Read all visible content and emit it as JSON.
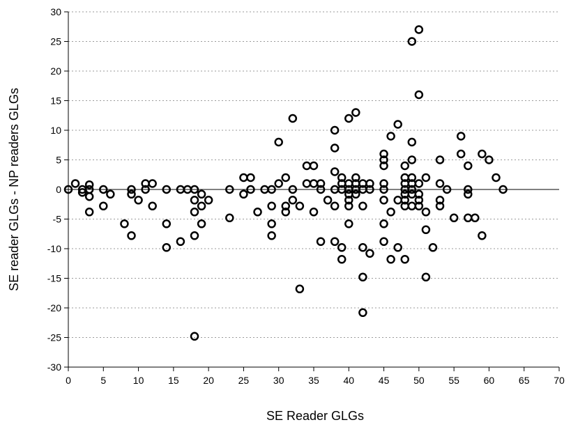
{
  "chart_data": {
    "type": "scatter",
    "title": "",
    "xlabel": "SE Reader GLGs",
    "ylabel": "SE reader GLGs - NP readers GLGs",
    "xlim": [
      0,
      70
    ],
    "ylim": [
      -30,
      30
    ],
    "xticks": [
      "0",
      "5",
      "10",
      "15",
      "20",
      "25",
      "30",
      "35",
      "40",
      "45",
      "50",
      "55",
      "60",
      "65",
      "70"
    ],
    "yticks": [
      "30",
      "25",
      "20",
      "15",
      "10",
      "5",
      "0",
      "-5",
      "-10",
      "-15",
      "-20",
      "-25",
      "-30"
    ],
    "grid": "horizontal dotted",
    "reference_line": 0,
    "marker": "open circle",
    "series": [
      {
        "points": [
          [
            0,
            0
          ],
          [
            1,
            1
          ],
          [
            2,
            0
          ],
          [
            2,
            -0.5
          ],
          [
            3,
            0.8
          ],
          [
            3,
            0
          ],
          [
            3,
            -1.2
          ],
          [
            3,
            -3.8
          ],
          [
            5,
            0
          ],
          [
            5,
            -2.8
          ],
          [
            6,
            -0.8
          ],
          [
            8,
            -5.8
          ],
          [
            9,
            0
          ],
          [
            9,
            -0.8
          ],
          [
            9,
            -7.8
          ],
          [
            10,
            -1.8
          ],
          [
            11,
            1
          ],
          [
            11,
            0
          ],
          [
            12,
            1
          ],
          [
            12,
            -2.8
          ],
          [
            14,
            0
          ],
          [
            14,
            -5.8
          ],
          [
            14,
            -9.8
          ],
          [
            16,
            0
          ],
          [
            16,
            -8.8
          ],
          [
            17,
            0
          ],
          [
            18,
            0
          ],
          [
            18,
            -1.8
          ],
          [
            18,
            -3.8
          ],
          [
            18,
            -7.8
          ],
          [
            18,
            -24.8
          ],
          [
            19,
            -0.8
          ],
          [
            19,
            -2.8
          ],
          [
            19,
            -5.8
          ],
          [
            20,
            -1.8
          ],
          [
            23,
            0
          ],
          [
            23,
            -4.8
          ],
          [
            25,
            2
          ],
          [
            25,
            -0.8
          ],
          [
            26,
            2
          ],
          [
            26,
            0
          ],
          [
            27,
            -3.8
          ],
          [
            28,
            0
          ],
          [
            29,
            0
          ],
          [
            29,
            -2.8
          ],
          [
            29,
            -5.8
          ],
          [
            29,
            -7.8
          ],
          [
            30,
            8
          ],
          [
            30,
            1
          ],
          [
            31,
            2
          ],
          [
            31,
            -2.8
          ],
          [
            31,
            -3.8
          ],
          [
            32,
            12
          ],
          [
            32,
            0
          ],
          [
            32,
            -1.8
          ],
          [
            33,
            -2.8
          ],
          [
            33,
            -16.8
          ],
          [
            34,
            4
          ],
          [
            34,
            1
          ],
          [
            35,
            4
          ],
          [
            35,
            1
          ],
          [
            35,
            -3.8
          ],
          [
            36,
            1
          ],
          [
            36,
            0
          ],
          [
            36,
            -8.8
          ],
          [
            37,
            -1.8
          ],
          [
            38,
            10
          ],
          [
            38,
            7
          ],
          [
            38,
            3
          ],
          [
            38,
            0
          ],
          [
            38,
            -2.8
          ],
          [
            38,
            -8.8
          ],
          [
            39,
            2
          ],
          [
            39,
            1
          ],
          [
            39,
            0
          ],
          [
            39,
            -9.8
          ],
          [
            39,
            -11.8
          ],
          [
            40,
            12
          ],
          [
            40,
            1
          ],
          [
            40,
            0
          ],
          [
            40,
            -0.8
          ],
          [
            40,
            -1.8
          ],
          [
            40,
            -2.8
          ],
          [
            40,
            -5.8
          ],
          [
            41,
            13
          ],
          [
            41,
            2
          ],
          [
            41,
            1
          ],
          [
            41,
            0
          ],
          [
            41,
            -0.8
          ],
          [
            42,
            1
          ],
          [
            42,
            0
          ],
          [
            42,
            -2.8
          ],
          [
            42,
            -9.8
          ],
          [
            42,
            -14.8
          ],
          [
            42,
            -20.8
          ],
          [
            43,
            1
          ],
          [
            43,
            0
          ],
          [
            43,
            -10.8
          ],
          [
            45,
            6
          ],
          [
            45,
            5
          ],
          [
            45,
            4
          ],
          [
            45,
            1
          ],
          [
            45,
            0
          ],
          [
            45,
            -1.8
          ],
          [
            45,
            -5.8
          ],
          [
            45,
            -8.8
          ],
          [
            46,
            9
          ],
          [
            46,
            -3.8
          ],
          [
            46,
            -11.8
          ],
          [
            47,
            11
          ],
          [
            47,
            -1.8
          ],
          [
            47,
            -9.8
          ],
          [
            48,
            4
          ],
          [
            48,
            2
          ],
          [
            48,
            1
          ],
          [
            48,
            0
          ],
          [
            48,
            -0.8
          ],
          [
            48,
            -1.8
          ],
          [
            48,
            -2.8
          ],
          [
            48,
            -11.8
          ],
          [
            49,
            25
          ],
          [
            49,
            8
          ],
          [
            49,
            5
          ],
          [
            49,
            2
          ],
          [
            49,
            1
          ],
          [
            49,
            0
          ],
          [
            49,
            -0.8
          ],
          [
            49,
            -2.8
          ],
          [
            50,
            27
          ],
          [
            50,
            16
          ],
          [
            50,
            1
          ],
          [
            50,
            -0.8
          ],
          [
            50,
            -1.8
          ],
          [
            50,
            -2.8
          ],
          [
            51,
            2
          ],
          [
            51,
            -3.8
          ],
          [
            51,
            -6.8
          ],
          [
            51,
            -14.8
          ],
          [
            52,
            -9.8
          ],
          [
            53,
            5
          ],
          [
            53,
            1
          ],
          [
            53,
            -1.8
          ],
          [
            53,
            -2.8
          ],
          [
            54,
            0
          ],
          [
            55,
            -4.8
          ],
          [
            56,
            9
          ],
          [
            56,
            6
          ],
          [
            57,
            4
          ],
          [
            57,
            0
          ],
          [
            57,
            -0.8
          ],
          [
            57,
            -4.8
          ],
          [
            58,
            -4.8
          ],
          [
            59,
            6
          ],
          [
            59,
            -7.8
          ],
          [
            60,
            5
          ],
          [
            61,
            2
          ],
          [
            62,
            0
          ]
        ]
      }
    ]
  }
}
